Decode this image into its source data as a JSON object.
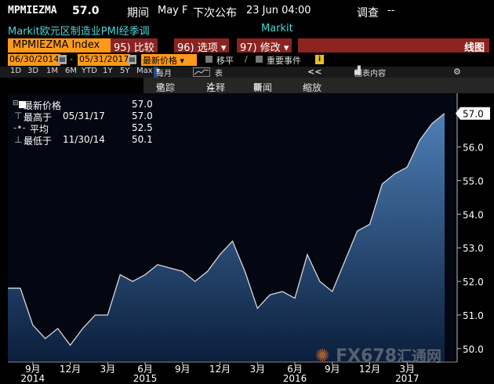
{
  "header": {
    "ticker": "MPMIEZMA",
    "last_value": "57.0",
    "period_label": "期间",
    "period_value": "May F",
    "next_release_label": "下次公布",
    "next_release_value": "23 Jun 04:00",
    "survey_label": "调查",
    "survey_value": "--"
  },
  "subheader": {
    "description": "Markit欧元区制造业PMI经季调",
    "source": "Markit"
  },
  "command_bar": {
    "index_name": "MPMIEZMA Index",
    "compare_num": "95)",
    "compare_label": "比较",
    "options_num": "96)",
    "options_label": "选项",
    "modify_num": "97)",
    "modify_label": "修改",
    "view_label": "线图"
  },
  "date_bar": {
    "start_date": "06/30/2014",
    "end_date": "05/31/2017",
    "separator": "-",
    "price_field": "最新价格",
    "move_label": "移平",
    "events_label": "重要事件",
    "calendar_glyph": "▤"
  },
  "range_bar": {
    "ranges": [
      "1D",
      "3D",
      "1M",
      "6M",
      "YTD",
      "1Y",
      "5Y",
      "Max"
    ],
    "frequency": "每月",
    "table_label": "表",
    "collapse_glyph": "<<",
    "chart_content_label": "图表内容"
  },
  "toolbar": {
    "track_label": "追踪",
    "annotate_label": "注释",
    "news_label": "新闻",
    "zoom_label": "缩放"
  },
  "legend": {
    "items": [
      {
        "name": "最新价格",
        "date": "",
        "value": "57.0"
      },
      {
        "name": "最高于",
        "date": "05/31/17",
        "value": "57.0"
      },
      {
        "name": "平均",
        "date": "",
        "value": "52.5"
      },
      {
        "name": "最低于",
        "date": "11/30/14",
        "value": "50.1"
      }
    ]
  },
  "chart_data": {
    "type": "area",
    "title": "",
    "xlabel": "",
    "ylabel": "",
    "ylim": [
      49.6,
      57.6
    ],
    "y_ticks": [
      "50.0",
      "51.0",
      "52.0",
      "53.0",
      "54.0",
      "55.0",
      "56.0",
      "57.0"
    ],
    "last_value_label": "57.0",
    "x_ticks": [
      {
        "label": "9月",
        "index": 2
      },
      {
        "label": "12月",
        "index": 5
      },
      {
        "label": "3月",
        "index": 8
      },
      {
        "label": "6月",
        "index": 11
      },
      {
        "label": "9月",
        "index": 14
      },
      {
        "label": "12月",
        "index": 17
      },
      {
        "label": "3月",
        "index": 20
      },
      {
        "label": "6月",
        "index": 23
      },
      {
        "label": "9月",
        "index": 26
      },
      {
        "label": "12月",
        "index": 29
      },
      {
        "label": "3月",
        "index": 32
      }
    ],
    "years": [
      {
        "label": "2014",
        "index": 2
      },
      {
        "label": "2015",
        "index": 11
      },
      {
        "label": "2016",
        "index": 23
      },
      {
        "label": "2017",
        "index": 32
      }
    ],
    "x": [
      "2014-06",
      "2014-07",
      "2014-08",
      "2014-09",
      "2014-10",
      "2014-11",
      "2014-12",
      "2015-01",
      "2015-02",
      "2015-03",
      "2015-04",
      "2015-05",
      "2015-06",
      "2015-07",
      "2015-08",
      "2015-09",
      "2015-10",
      "2015-11",
      "2015-12",
      "2016-01",
      "2016-02",
      "2016-03",
      "2016-04",
      "2016-05",
      "2016-06",
      "2016-07",
      "2016-08",
      "2016-09",
      "2016-10",
      "2016-11",
      "2016-12",
      "2017-01",
      "2017-02",
      "2017-03",
      "2017-04",
      "2017-05"
    ],
    "values": [
      51.8,
      51.8,
      50.7,
      50.3,
      50.6,
      50.1,
      50.6,
      51.0,
      51.0,
      52.2,
      52.0,
      52.2,
      52.5,
      52.4,
      52.3,
      52.0,
      52.3,
      52.8,
      53.2,
      52.3,
      51.2,
      51.6,
      51.7,
      51.5,
      52.8,
      52.0,
      51.7,
      52.6,
      53.5,
      53.7,
      54.9,
      55.2,
      55.4,
      56.2,
      56.7,
      57.0
    ],
    "line_color": "#d8d8d8",
    "fill_top_color": "#4d7fb6",
    "fill_bottom_color": "#0b1e3c",
    "grid": false,
    "legend_position": "top-left"
  },
  "watermark": {
    "text": "FX678",
    "suffix": "汇通网"
  }
}
